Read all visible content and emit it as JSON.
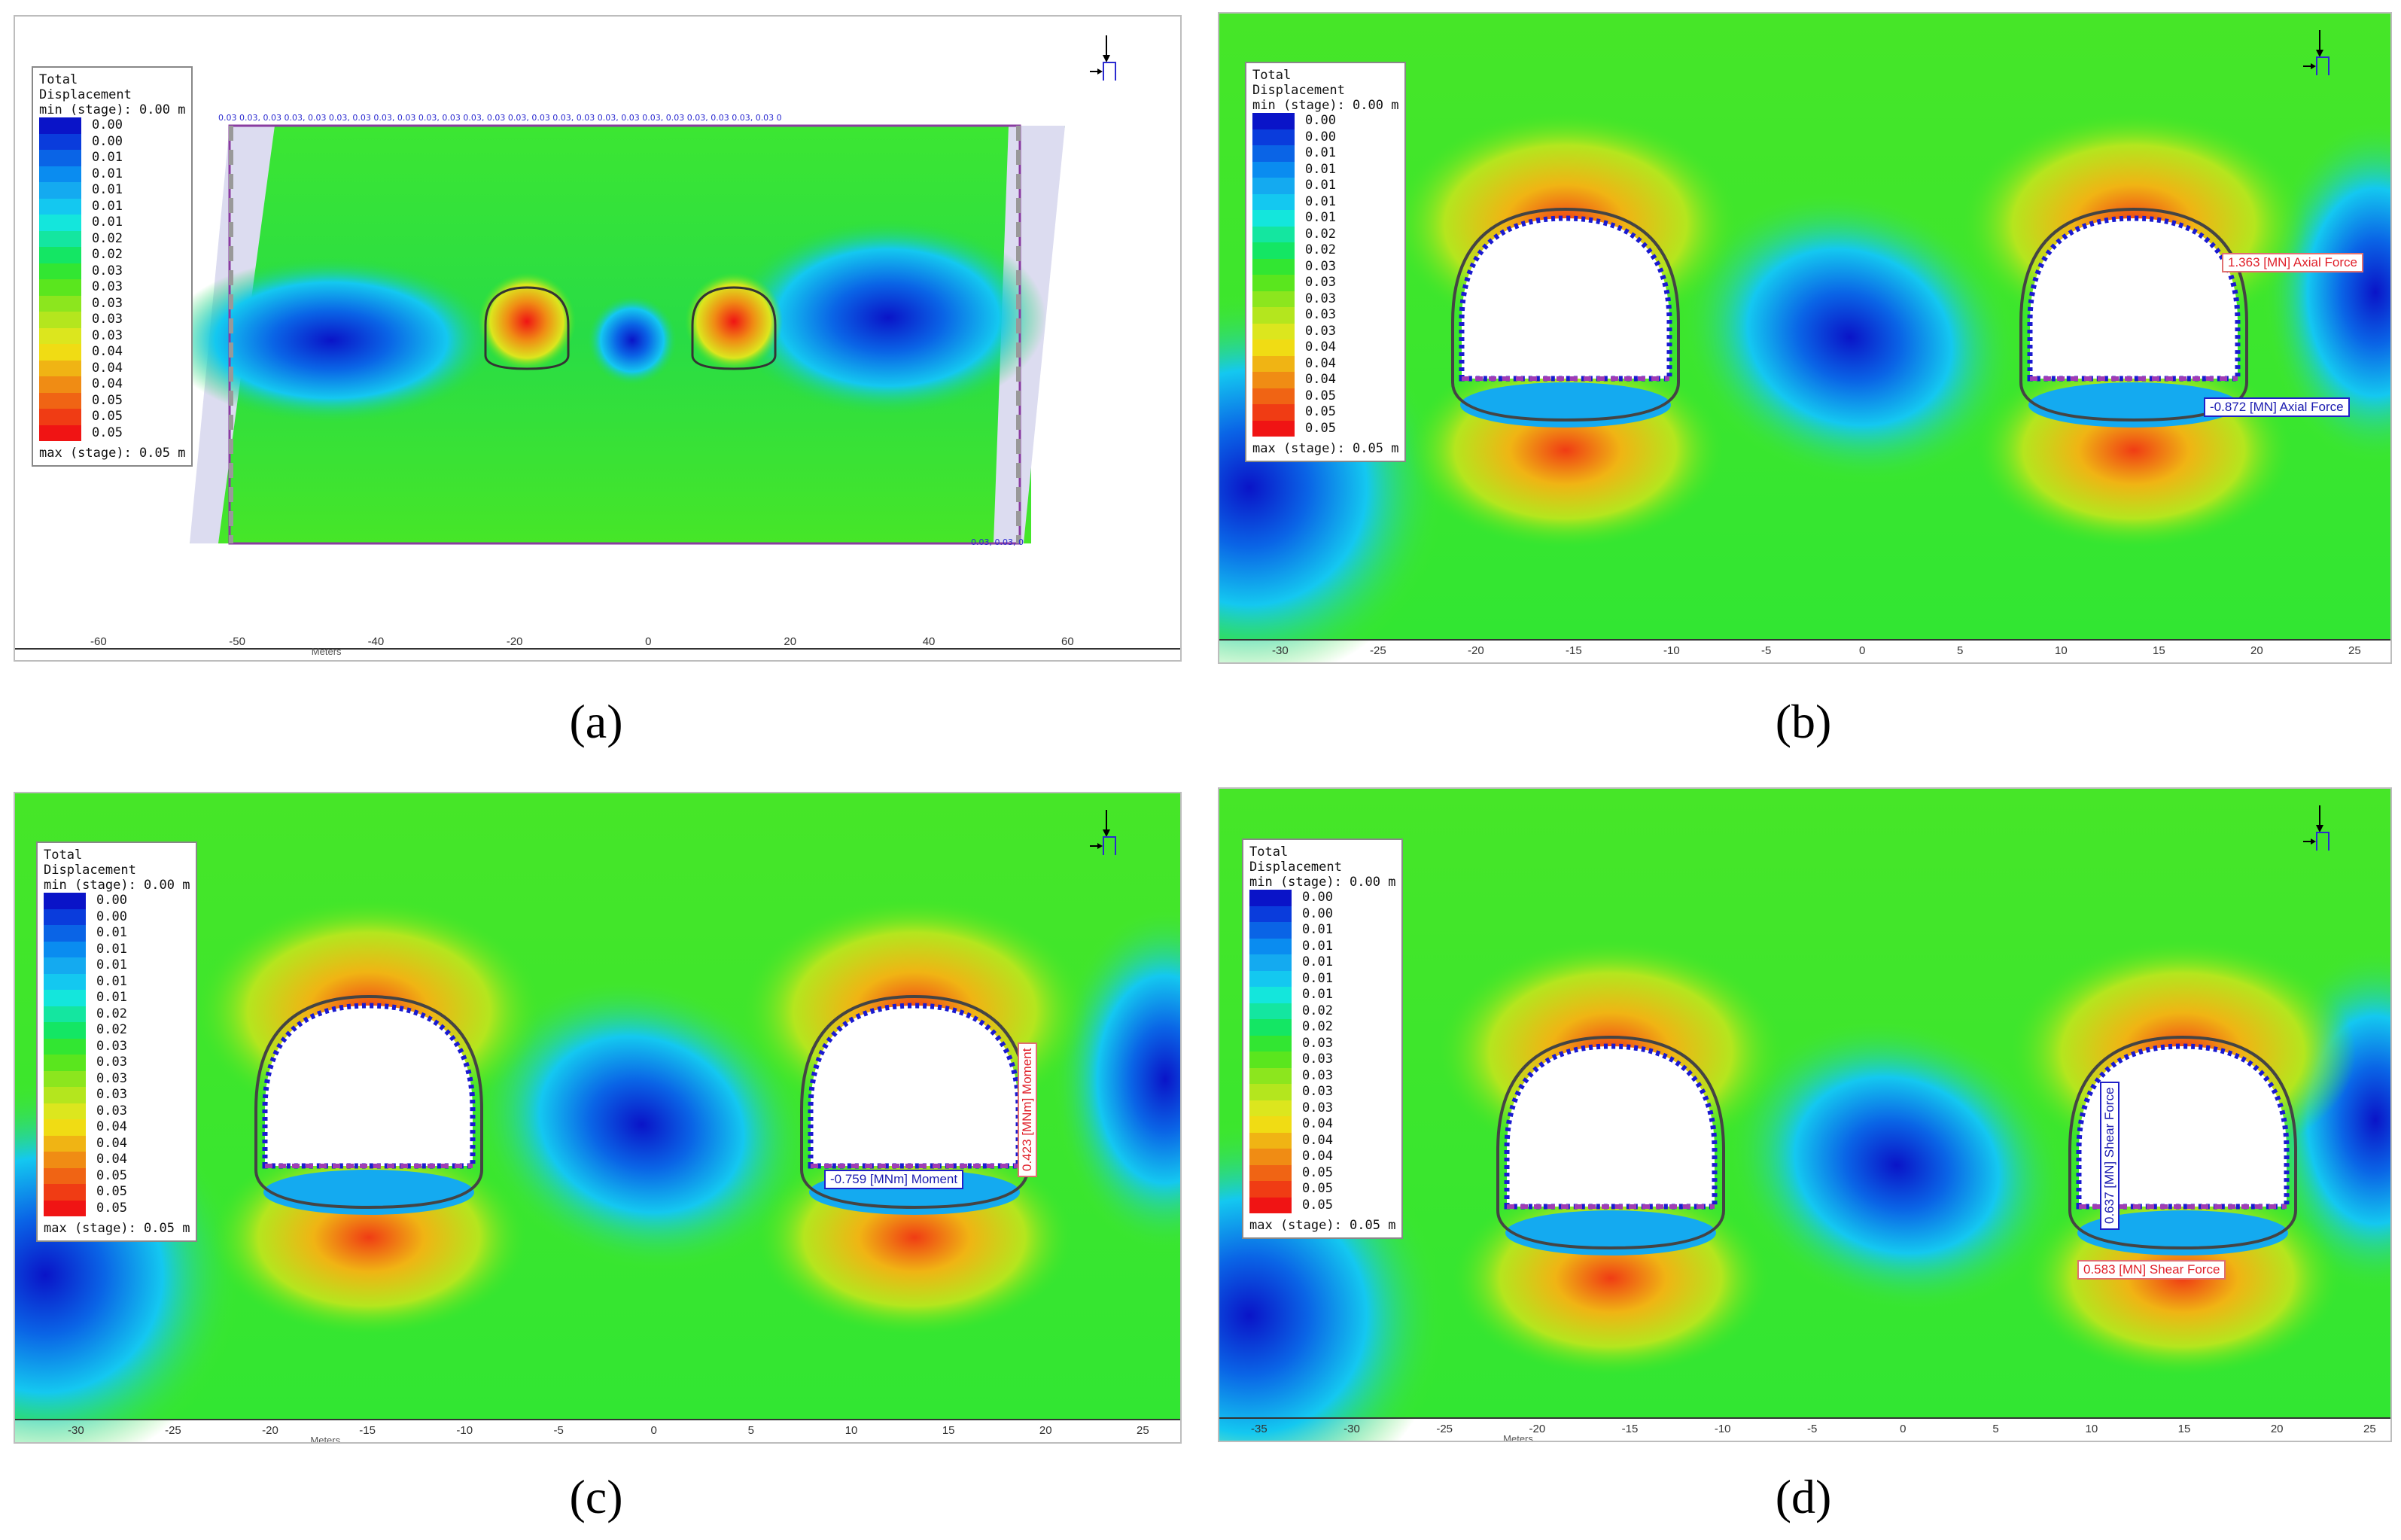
{
  "panels": [
    {
      "caption": "(a)",
      "legend": true,
      "x_ticks": [
        "-60",
        "-50",
        "-40",
        "-20",
        "0",
        "20",
        "40",
        "60"
      ],
      "axis_title": "Meters"
    },
    {
      "caption": "(b)",
      "legend": true,
      "x_ticks": [
        "-30",
        "-25",
        "-20",
        "-15",
        "-10",
        "-5",
        "0",
        "5",
        "10",
        "15",
        "20",
        "25"
      ],
      "axis_title": "",
      "labels": [
        {
          "text": "1.363 [MN] Axial Force",
          "color": "red"
        },
        {
          "text": "-0.872 [MN] Axial Force",
          "color": "blue"
        }
      ]
    },
    {
      "caption": "(c)",
      "legend": true,
      "x_ticks": [
        "-30",
        "-25",
        "-20",
        "-15",
        "-10",
        "-5",
        "0",
        "5",
        "10",
        "15",
        "20",
        "25"
      ],
      "axis_title": "Meters",
      "labels": [
        {
          "text": "-0.759 [MNm] Moment",
          "color": "blue"
        },
        {
          "text": "0.423 [MNm] Moment",
          "color": "red"
        }
      ]
    },
    {
      "caption": "(d)",
      "legend": true,
      "x_ticks": [
        "-35",
        "-30",
        "-25",
        "-20",
        "-15",
        "-10",
        "-5",
        "0",
        "5",
        "10",
        "15",
        "20",
        "25"
      ],
      "axis_title": "Meters",
      "labels": [
        {
          "text": "0.637 [MN] Shear Force",
          "color": "blue"
        },
        {
          "text": "0.583 [MN] Shear Force",
          "color": "red"
        }
      ]
    }
  ],
  "legend": {
    "title": "Total\nDisplacement\nmin (stage): 0.00 m",
    "max": "max (stage): 0.05 m",
    "values": [
      "0.00",
      "0.00",
      "0.01",
      "0.01",
      "0.01",
      "0.01",
      "0.01",
      "0.02",
      "0.02",
      "0.03",
      "0.03",
      "0.03",
      "0.03",
      "0.03",
      "0.04",
      "0.04",
      "0.04",
      "0.05",
      "0.05",
      "0.05"
    ],
    "colors": [
      "#0a14c8",
      "#0a3cdc",
      "#0a64e6",
      "#0a8cf0",
      "#14aaf0",
      "#14c8f0",
      "#14e6dc",
      "#14e6a0",
      "#14e664",
      "#32e632",
      "#5ae61e",
      "#8ce61e",
      "#b4e61e",
      "#dce61e",
      "#f0dc14",
      "#f0b414",
      "#f08c14",
      "#f06414",
      "#f03c14",
      "#f01414"
    ]
  },
  "panel_a_boundary_text": "0.03 0.03, 0.03 0.03, 0.03 0.03, 0.03 0.03, 0.03 0.03, 0.03 0.03, 0.03 0.03, 0.03 0.03, 0.03 0.03, 0.03 0.03, 0.03 0.03, 0.03 0.03, 0.03 0",
  "panel_a_corner_text": "0.03, 0.03, 0"
}
